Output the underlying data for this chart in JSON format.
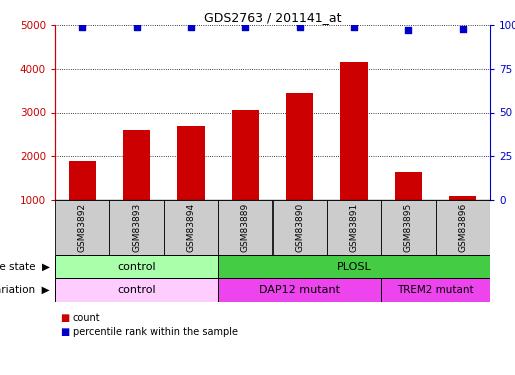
{
  "title": "GDS2763 / 201141_at",
  "samples": [
    "GSM83892",
    "GSM83893",
    "GSM83894",
    "GSM83889",
    "GSM83890",
    "GSM83891",
    "GSM83895",
    "GSM83896"
  ],
  "counts": [
    1900,
    2600,
    2700,
    3050,
    3450,
    4150,
    1650,
    1100
  ],
  "percentiles": [
    99,
    99,
    99,
    99,
    99,
    99,
    97,
    98
  ],
  "ylim_left": [
    1000,
    5000
  ],
  "ylim_right": [
    0,
    100
  ],
  "yticks_left": [
    1000,
    2000,
    3000,
    4000,
    5000
  ],
  "yticks_right": [
    0,
    25,
    50,
    75,
    100
  ],
  "bar_color": "#cc0000",
  "dot_color": "#0000cc",
  "bar_width": 0.5,
  "disease_state_colors": {
    "control": "#aaffaa",
    "PLOSL": "#44cc44"
  },
  "genotype_colors": {
    "control": "#ffccff",
    "DAP12 mutant": "#ee44ee",
    "TREM2 mutant": "#ee44ee"
  },
  "left_axis_color": "#cc0000",
  "right_axis_color": "#0000cc",
  "background_color": "#ffffff",
  "label_box_color": "#cccccc"
}
